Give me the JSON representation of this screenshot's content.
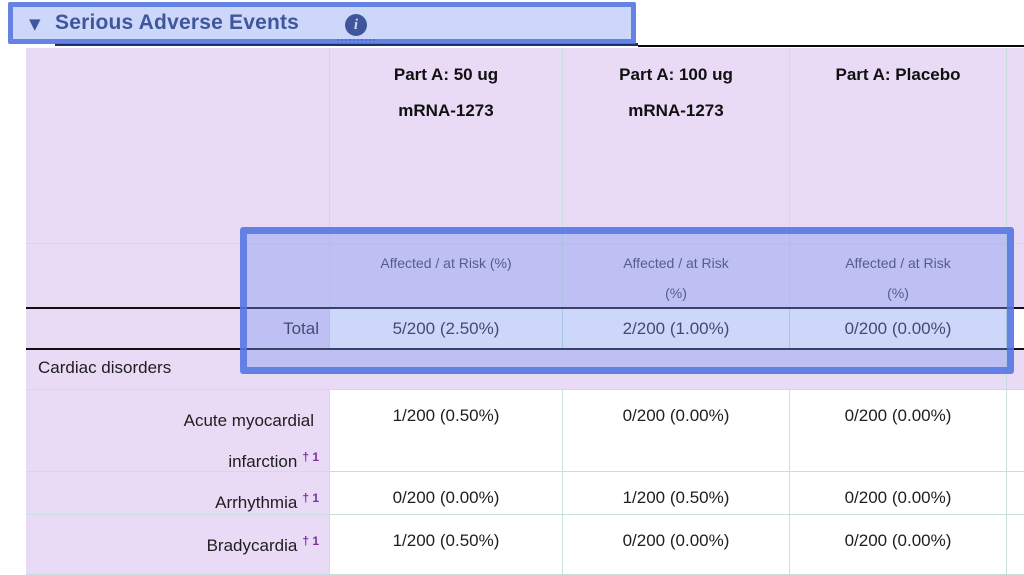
{
  "section": {
    "title": "Serious Adverse Events",
    "icons": {
      "collapse": "▼",
      "info": "i"
    }
  },
  "table": {
    "columns": [
      {
        "header_lines": [
          "Part A: 50 ug",
          "mRNA-1273"
        ],
        "subheader_lines": [
          "Affected / at Risk (%)"
        ]
      },
      {
        "header_lines": [
          "Part A: 100 ug",
          "mRNA-1273"
        ],
        "subheader_lines": [
          "Affected / at Risk",
          "(%)"
        ]
      },
      {
        "header_lines": [
          "Part A: Placebo"
        ],
        "subheader_lines": [
          "Affected / at Risk",
          "(%)"
        ]
      }
    ],
    "total_row": {
      "label": "Total",
      "values": [
        "5/200 (2.50%)",
        "2/200 (1.00%)",
        "0/200 (0.00%)"
      ]
    },
    "category_row": {
      "label": "Cardiac disorders"
    },
    "rows": [
      {
        "label": "Acute myocardial infarction",
        "lines": [
          {
            "text": "Acute myocardial"
          },
          {
            "text": "infarction",
            "marker": "† 1"
          }
        ],
        "values": [
          "1/200 (0.50%)",
          "0/200 (0.00%)",
          "0/200 (0.00%)"
        ]
      },
      {
        "label": "Arrhythmia",
        "lines": [
          {
            "text": "Arrhythmia",
            "marker": "† 1"
          }
        ],
        "values": [
          "0/200 (0.00%)",
          "1/200 (0.50%)",
          "0/200 (0.00%)"
        ]
      },
      {
        "label": "Bradycardia",
        "lines": [
          {
            "text": "Bradycardia",
            "marker": "† 1"
          }
        ],
        "values": [
          "1/200 (0.50%)",
          "0/200 (0.00%)",
          "0/200 (0.00%)"
        ]
      }
    ]
  },
  "colors": {
    "highlight_border": "#5274e2",
    "table_lavender": "#e9daf5",
    "cell_border_teal": "#c8dfdd",
    "title_navy": "#1c2f6b",
    "footnote_purple": "#7d2fa6"
  }
}
